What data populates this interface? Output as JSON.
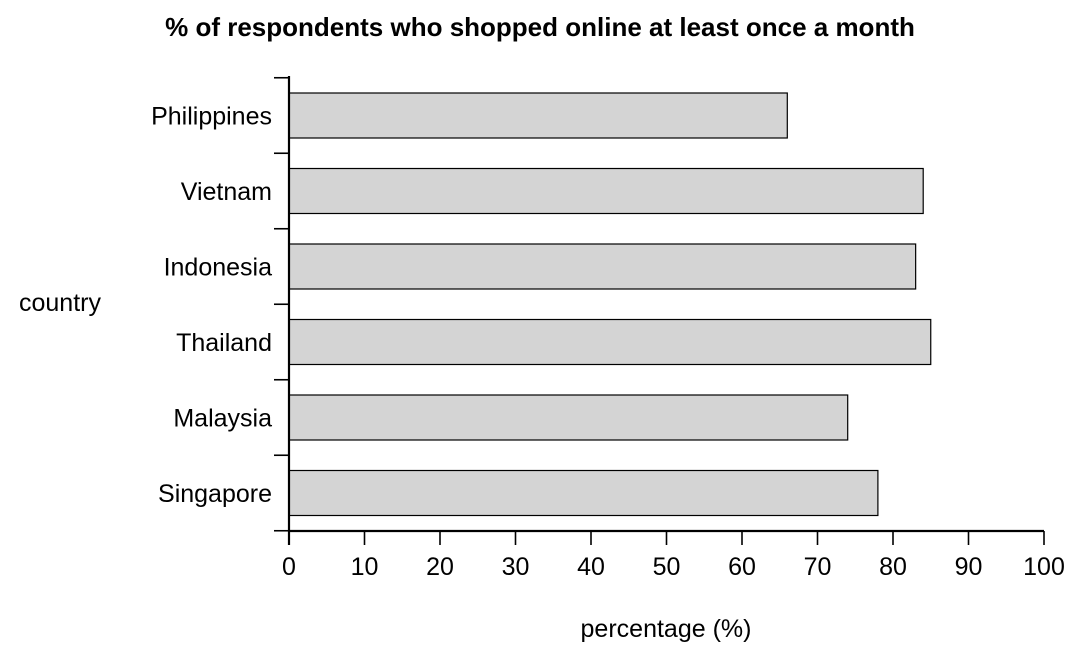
{
  "chart_data": {
    "type": "bar",
    "orientation": "horizontal",
    "title": "% of respondents who shopped online at least once a month",
    "xlabel": "percentage (%)",
    "ylabel": "country",
    "categories": [
      "Philippines",
      "Vietnam",
      "Indonesia",
      "Thailand",
      "Malaysia",
      "Singapore"
    ],
    "values": [
      66,
      84,
      83,
      85,
      74,
      78
    ],
    "xlim": [
      0,
      100
    ],
    "xticks": [
      0,
      10,
      20,
      30,
      40,
      50,
      60,
      70,
      80,
      90,
      100
    ],
    "grid": false,
    "legend": "none",
    "colors": {
      "bar_fill": "#d4d4d4",
      "bar_stroke": "#000000",
      "axis": "#000000",
      "text": "#000000"
    }
  }
}
